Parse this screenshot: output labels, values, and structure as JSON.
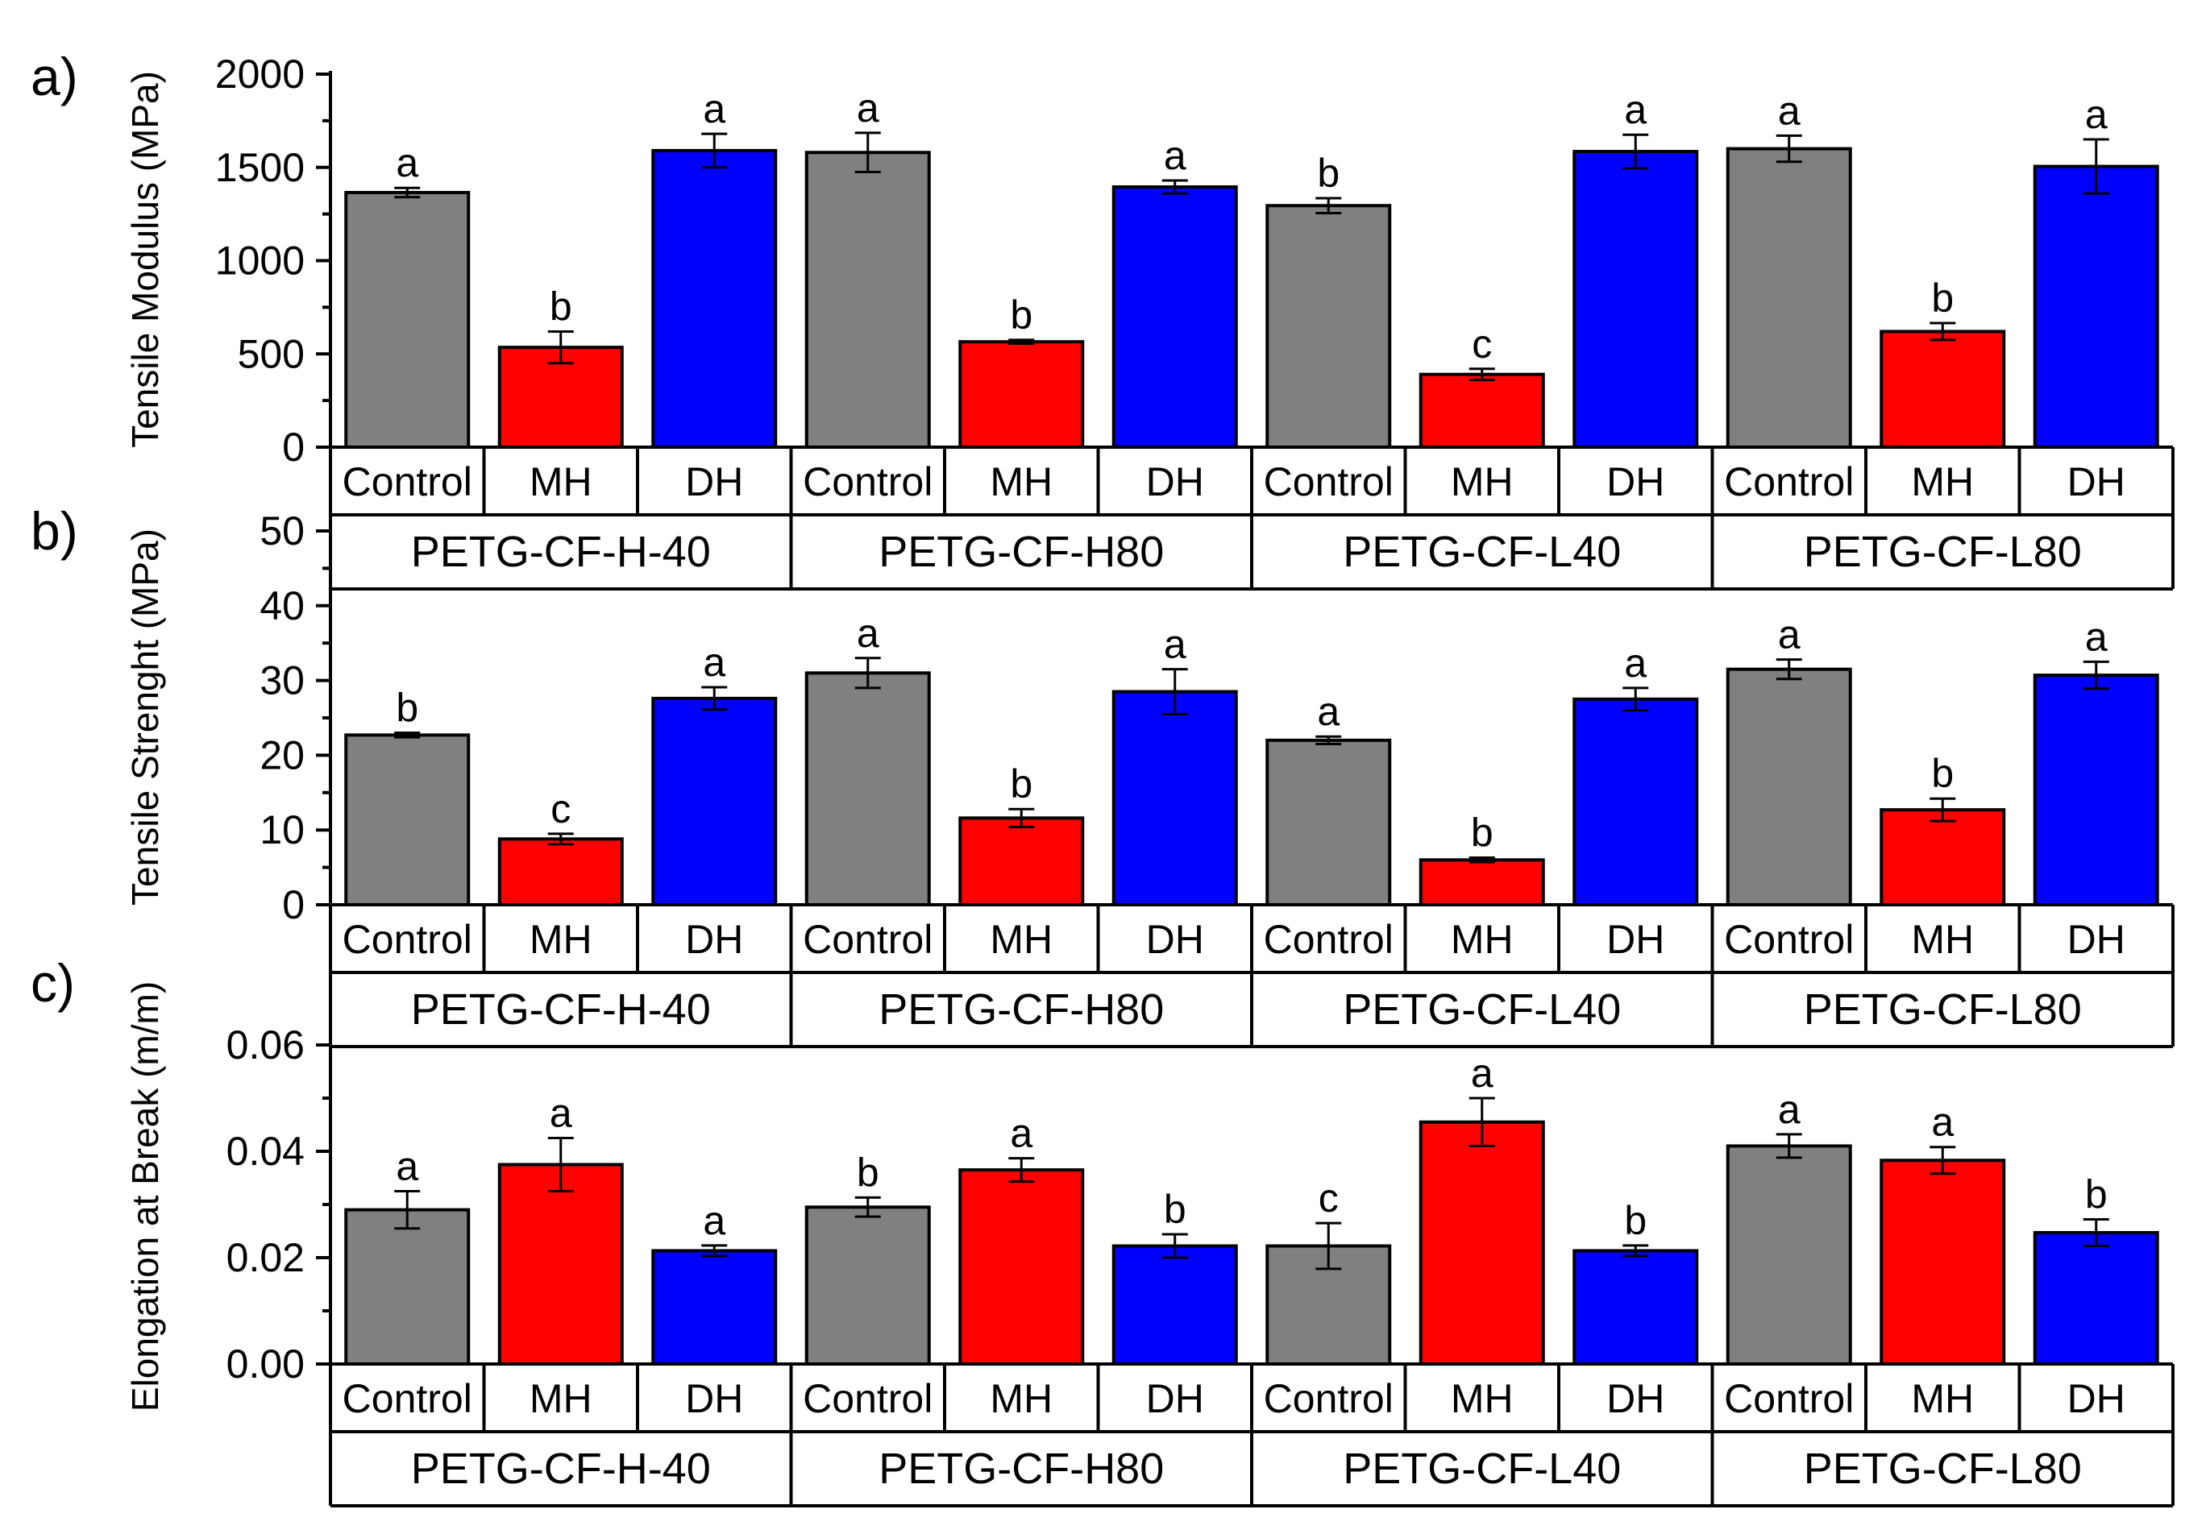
{
  "chart_data": [
    {
      "type": "bar",
      "panel_label": "a)",
      "ylabel": "Tensile Modulus (MPa)",
      "ylim": [
        0,
        2000
      ],
      "yticks": [
        0,
        500,
        1000,
        1500,
        2000
      ],
      "groups": [
        "PETG-CF-H-40",
        "PETG-CF-H80",
        "PETG-CF-L40",
        "PETG-CF-L80"
      ],
      "categories": [
        "Control",
        "MH",
        "DH"
      ],
      "bars": [
        {
          "group": "PETG-CF-H-40",
          "category": "Control",
          "value": 1365,
          "error": 25,
          "letter": "a"
        },
        {
          "group": "PETG-CF-H-40",
          "category": "MH",
          "value": 535,
          "error": 85,
          "letter": "b"
        },
        {
          "group": "PETG-CF-H-40",
          "category": "DH",
          "value": 1590,
          "error": 90,
          "letter": "a"
        },
        {
          "group": "PETG-CF-H80",
          "category": "Control",
          "value": 1580,
          "error": 105,
          "letter": "a"
        },
        {
          "group": "PETG-CF-H80",
          "category": "MH",
          "value": 565,
          "error": 10,
          "letter": "b"
        },
        {
          "group": "PETG-CF-H80",
          "category": "DH",
          "value": 1395,
          "error": 35,
          "letter": "a"
        },
        {
          "group": "PETG-CF-L40",
          "category": "Control",
          "value": 1295,
          "error": 40,
          "letter": "b"
        },
        {
          "group": "PETG-CF-L40",
          "category": "MH",
          "value": 390,
          "error": 30,
          "letter": "c"
        },
        {
          "group": "PETG-CF-L40",
          "category": "DH",
          "value": 1585,
          "error": 90,
          "letter": "a"
        },
        {
          "group": "PETG-CF-L80",
          "category": "Control",
          "value": 1600,
          "error": 70,
          "letter": "a"
        },
        {
          "group": "PETG-CF-L80",
          "category": "MH",
          "value": 620,
          "error": 45,
          "letter": "b"
        },
        {
          "group": "PETG-CF-L80",
          "category": "DH",
          "value": 1505,
          "error": 145,
          "letter": "a"
        }
      ]
    },
    {
      "type": "bar",
      "panel_label": "b)",
      "ylabel": "Tensile Strenght (MPa)",
      "ylim": [
        0,
        50
      ],
      "yticks": [
        0,
        10,
        20,
        30,
        40,
        50
      ],
      "groups": [
        "PETG-CF-H-40",
        "PETG-CF-H80",
        "PETG-CF-L40",
        "PETG-CF-L80"
      ],
      "categories": [
        "Control",
        "MH",
        "DH"
      ],
      "bars": [
        {
          "group": "PETG-CF-H-40",
          "category": "Control",
          "value": 22.7,
          "error": 0.3,
          "letter": "b"
        },
        {
          "group": "PETG-CF-H-40",
          "category": "MH",
          "value": 8.8,
          "error": 0.7,
          "letter": "c"
        },
        {
          "group": "PETG-CF-H-40",
          "category": "DH",
          "value": 27.6,
          "error": 1.5,
          "letter": "a"
        },
        {
          "group": "PETG-CF-H80",
          "category": "Control",
          "value": 31.0,
          "error": 2.0,
          "letter": "a"
        },
        {
          "group": "PETG-CF-H80",
          "category": "MH",
          "value": 11.6,
          "error": 1.2,
          "letter": "b"
        },
        {
          "group": "PETG-CF-H80",
          "category": "DH",
          "value": 28.5,
          "error": 3.0,
          "letter": "a"
        },
        {
          "group": "PETG-CF-L40",
          "category": "Control",
          "value": 22.0,
          "error": 0.5,
          "letter": "a"
        },
        {
          "group": "PETG-CF-L40",
          "category": "MH",
          "value": 6.0,
          "error": 0.3,
          "letter": "b"
        },
        {
          "group": "PETG-CF-L40",
          "category": "DH",
          "value": 27.5,
          "error": 1.5,
          "letter": "a"
        },
        {
          "group": "PETG-CF-L80",
          "category": "Control",
          "value": 31.5,
          "error": 1.3,
          "letter": "a"
        },
        {
          "group": "PETG-CF-L80",
          "category": "MH",
          "value": 12.7,
          "error": 1.5,
          "letter": "b"
        },
        {
          "group": "PETG-CF-L80",
          "category": "DH",
          "value": 30.7,
          "error": 1.8,
          "letter": "a"
        }
      ]
    },
    {
      "type": "bar",
      "panel_label": "c)",
      "ylabel": "Elongation at Break (m/m)",
      "ylim": [
        0,
        0.06
      ],
      "yticks": [
        "0.00",
        "0.02",
        "0.04",
        "0.06"
      ],
      "groups": [
        "PETG-CF-H-40",
        "PETG-CF-H80",
        "PETG-CF-L40",
        "PETG-CF-L80"
      ],
      "categories": [
        "Control",
        "MH",
        "DH"
      ],
      "bars": [
        {
          "group": "PETG-CF-H-40",
          "category": "Control",
          "value": 0.029,
          "error": 0.0035,
          "letter": "a"
        },
        {
          "group": "PETG-CF-H-40",
          "category": "MH",
          "value": 0.0375,
          "error": 0.005,
          "letter": "a"
        },
        {
          "group": "PETG-CF-H-40",
          "category": "DH",
          "value": 0.0213,
          "error": 0.001,
          "letter": "a"
        },
        {
          "group": "PETG-CF-H80",
          "category": "Control",
          "value": 0.0295,
          "error": 0.0018,
          "letter": "b"
        },
        {
          "group": "PETG-CF-H80",
          "category": "MH",
          "value": 0.0365,
          "error": 0.0022,
          "letter": "a"
        },
        {
          "group": "PETG-CF-H80",
          "category": "DH",
          "value": 0.0222,
          "error": 0.0022,
          "letter": "b"
        },
        {
          "group": "PETG-CF-L40",
          "category": "Control",
          "value": 0.0222,
          "error": 0.0043,
          "letter": "c"
        },
        {
          "group": "PETG-CF-L40",
          "category": "MH",
          "value": 0.0455,
          "error": 0.0045,
          "letter": "a"
        },
        {
          "group": "PETG-CF-L40",
          "category": "DH",
          "value": 0.0213,
          "error": 0.001,
          "letter": "b"
        },
        {
          "group": "PETG-CF-L80",
          "category": "Control",
          "value": 0.041,
          "error": 0.0022,
          "letter": "a"
        },
        {
          "group": "PETG-CF-L80",
          "category": "MH",
          "value": 0.0383,
          "error": 0.0025,
          "letter": "a"
        },
        {
          "group": "PETG-CF-L80",
          "category": "DH",
          "value": 0.0247,
          "error": 0.0025,
          "letter": "b"
        }
      ]
    }
  ],
  "colors": {
    "Control": "#808080",
    "MH": "#ff0000",
    "DH": "#0000ff",
    "axis": "#000000"
  }
}
